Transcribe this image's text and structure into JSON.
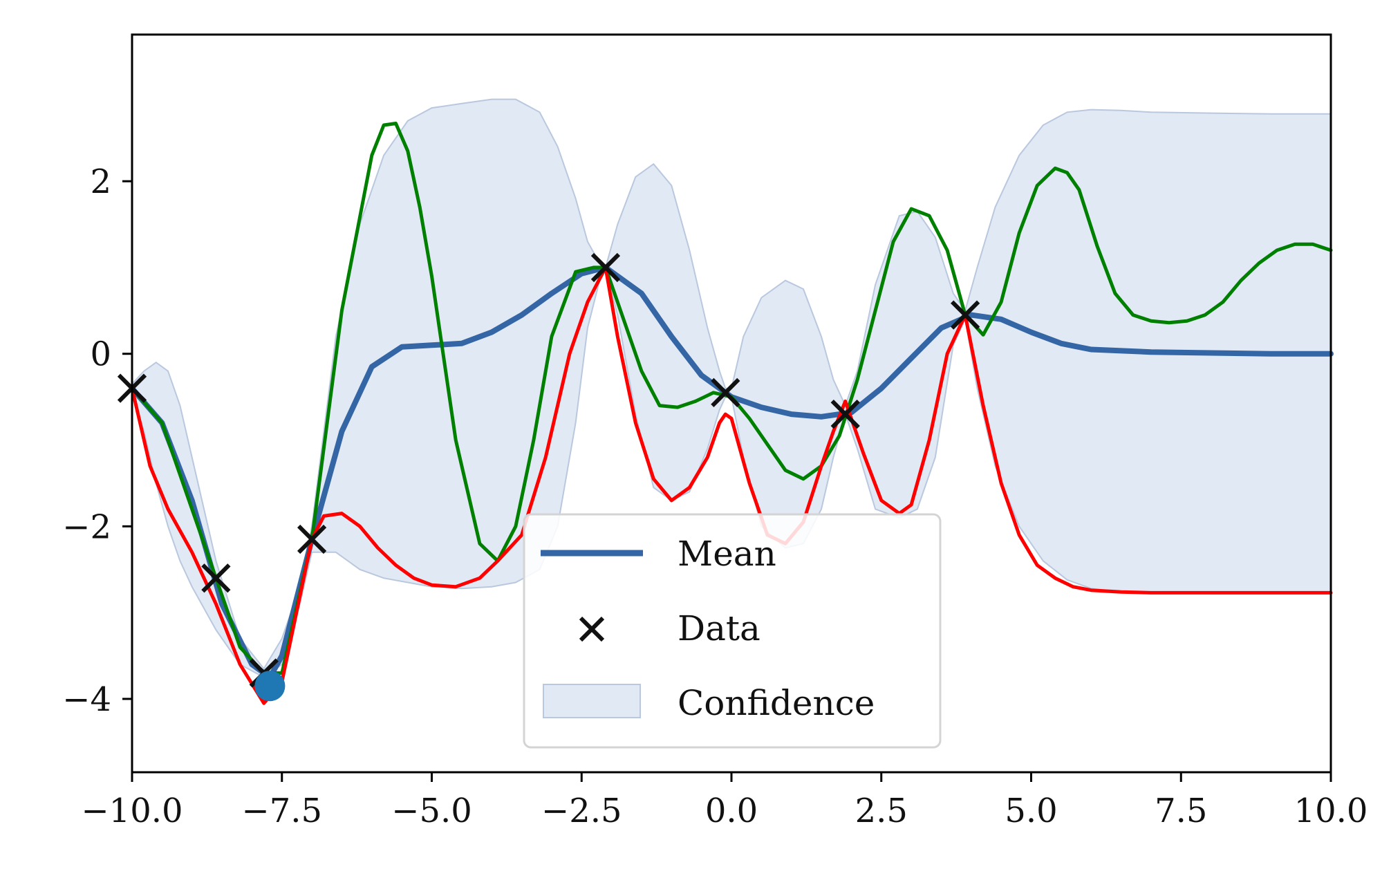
{
  "chart_data": {
    "type": "line",
    "title": "",
    "xlabel": "",
    "ylabel": "",
    "xlim": [
      -10,
      10
    ],
    "ylim": [
      -4.85,
      3.7
    ],
    "xticks": [
      -10,
      -7.5,
      -5,
      -2.5,
      0,
      2.5,
      5,
      7.5,
      10
    ],
    "xtick_labels": [
      "−10.0",
      "−7.5",
      "−5.0",
      "−2.5",
      "0.0",
      "2.5",
      "5.0",
      "7.5",
      "10.0"
    ],
    "yticks": [
      -4,
      -2,
      0,
      2
    ],
    "ytick_labels": [
      "−4",
      "−2",
      "0",
      "2"
    ],
    "grid": false,
    "legend_position": "bottom-center",
    "legend": [
      "Mean",
      "Data",
      "Confidence"
    ],
    "colors": {
      "mean": "#3465a4",
      "confidence_fill": "#e1e9f4",
      "confidence_edge": "#b9c8de",
      "sample_green": "#008000",
      "sample_red": "#ff0000",
      "data_marker": "#111111",
      "highlight_point": "#1f77b4"
    },
    "data_points": {
      "x": [
        -10.0,
        -8.6,
        -7.8,
        -7.0,
        -2.1,
        -0.1,
        1.9,
        3.9
      ],
      "y": [
        -0.4,
        -2.6,
        -3.7,
        -2.15,
        1.0,
        -0.45,
        -0.7,
        0.45
      ]
    },
    "highlight_point": {
      "x": -7.7,
      "y": -3.85
    },
    "series": [
      {
        "name": "Mean",
        "x": [
          -10.0,
          -9.5,
          -9.0,
          -8.5,
          -8.0,
          -7.7,
          -7.5,
          -7.0,
          -6.5,
          -6.0,
          -5.5,
          -5.0,
          -4.5,
          -4.0,
          -3.5,
          -3.0,
          -2.5,
          -2.1,
          -1.5,
          -1.0,
          -0.5,
          0.0,
          0.5,
          1.0,
          1.5,
          2.0,
          2.5,
          3.0,
          3.5,
          4.0,
          4.5,
          5.0,
          5.5,
          6.0,
          7.0,
          8.0,
          9.0,
          10.0
        ],
        "y": [
          -0.4,
          -0.8,
          -1.7,
          -2.9,
          -3.6,
          -3.75,
          -3.5,
          -2.15,
          -0.9,
          -0.15,
          0.08,
          0.1,
          0.12,
          0.25,
          0.45,
          0.7,
          0.93,
          1.0,
          0.7,
          0.2,
          -0.25,
          -0.5,
          -0.62,
          -0.7,
          -0.73,
          -0.68,
          -0.4,
          -0.05,
          0.3,
          0.45,
          0.4,
          0.25,
          0.12,
          0.05,
          0.02,
          0.01,
          0.0,
          0.0
        ]
      },
      {
        "name": "",
        "x": [
          -10.0,
          -9.5,
          -9.0,
          -8.6,
          -8.2,
          -7.8,
          -7.5,
          -7.0,
          -6.5,
          -6.0,
          -5.8,
          -5.6,
          -5.4,
          -5.2,
          -5.0,
          -4.6,
          -4.2,
          -3.9,
          -3.6,
          -3.3,
          -3.0,
          -2.6,
          -2.3,
          -2.1,
          -1.8,
          -1.5,
          -1.2,
          -0.9,
          -0.6,
          -0.3,
          0.0,
          0.3,
          0.6,
          0.9,
          1.2,
          1.5,
          1.8,
          2.1,
          2.4,
          2.7,
          3.0,
          3.3,
          3.6,
          3.9,
          4.2,
          4.5,
          4.8,
          5.1,
          5.4,
          5.6,
          5.8,
          6.1,
          6.4,
          6.7,
          7.0,
          7.3,
          7.6,
          7.9,
          8.2,
          8.5,
          8.8,
          9.1,
          9.4,
          9.7,
          10.0
        ],
        "y": [
          -0.4,
          -0.8,
          -1.8,
          -2.6,
          -3.4,
          -3.7,
          -3.7,
          -2.15,
          0.5,
          2.3,
          2.65,
          2.67,
          2.35,
          1.7,
          0.9,
          -1.0,
          -2.2,
          -2.4,
          -2.0,
          -1.0,
          0.2,
          0.95,
          1.0,
          1.0,
          0.4,
          -0.2,
          -0.6,
          -0.62,
          -0.55,
          -0.45,
          -0.5,
          -0.75,
          -1.05,
          -1.35,
          -1.45,
          -1.3,
          -0.95,
          -0.3,
          0.5,
          1.3,
          1.68,
          1.6,
          1.2,
          0.45,
          0.22,
          0.6,
          1.4,
          1.95,
          2.15,
          2.1,
          1.9,
          1.25,
          0.7,
          0.45,
          0.38,
          0.36,
          0.38,
          0.45,
          0.6,
          0.85,
          1.05,
          1.2,
          1.27,
          1.27,
          1.2
        ]
      },
      {
        "name": "",
        "x": [
          -10.0,
          -9.7,
          -9.4,
          -9.0,
          -8.6,
          -8.2,
          -7.8,
          -7.5,
          -7.0,
          -6.8,
          -6.5,
          -6.2,
          -5.9,
          -5.6,
          -5.3,
          -5.0,
          -4.6,
          -4.2,
          -3.9,
          -3.5,
          -3.1,
          -2.7,
          -2.4,
          -2.1,
          -1.9,
          -1.6,
          -1.3,
          -1.0,
          -0.7,
          -0.4,
          -0.2,
          -0.1,
          0.0,
          0.3,
          0.6,
          0.9,
          1.2,
          1.5,
          1.7,
          1.9,
          2.2,
          2.5,
          2.8,
          3.0,
          3.3,
          3.6,
          3.9,
          4.2,
          4.5,
          4.8,
          5.1,
          5.4,
          5.7,
          6.0,
          6.5,
          7.0,
          8.0,
          9.0,
          10.0
        ],
        "y": [
          -0.4,
          -1.3,
          -1.8,
          -2.3,
          -2.9,
          -3.6,
          -4.05,
          -3.8,
          -2.15,
          -1.88,
          -1.85,
          -2.0,
          -2.25,
          -2.45,
          -2.6,
          -2.68,
          -2.7,
          -2.6,
          -2.4,
          -2.1,
          -1.2,
          0.0,
          0.6,
          1.0,
          0.2,
          -0.8,
          -1.45,
          -1.7,
          -1.55,
          -1.2,
          -0.8,
          -0.7,
          -0.75,
          -1.5,
          -2.1,
          -2.2,
          -1.95,
          -1.3,
          -0.9,
          -0.55,
          -1.15,
          -1.7,
          -1.85,
          -1.75,
          -1.0,
          0.0,
          0.45,
          -0.6,
          -1.5,
          -2.1,
          -2.45,
          -2.6,
          -2.7,
          -2.74,
          -2.76,
          -2.77,
          -2.77,
          -2.77,
          -2.77
        ]
      }
    ],
    "confidence": {
      "x": [
        -10.0,
        -9.8,
        -9.6,
        -9.4,
        -9.2,
        -9.0,
        -8.6,
        -8.2,
        -7.8,
        -7.5,
        -7.2,
        -7.0,
        -6.6,
        -6.2,
        -5.8,
        -5.4,
        -5.0,
        -4.5,
        -4.0,
        -3.6,
        -3.2,
        -2.9,
        -2.6,
        -2.4,
        -2.2,
        -2.1,
        -1.9,
        -1.6,
        -1.3,
        -1.0,
        -0.7,
        -0.4,
        -0.2,
        -0.1,
        0.0,
        0.2,
        0.5,
        0.9,
        1.2,
        1.5,
        1.7,
        1.9,
        2.1,
        2.4,
        2.8,
        3.1,
        3.4,
        3.7,
        3.9,
        4.1,
        4.4,
        4.8,
        5.2,
        5.6,
        6.0,
        6.5,
        7.0,
        8.0,
        9.0,
        10.0
      ],
      "upper": [
        -0.35,
        -0.2,
        -0.1,
        -0.2,
        -0.6,
        -1.2,
        -2.4,
        -3.3,
        -3.65,
        -3.3,
        -2.7,
        -2.0,
        0.2,
        1.5,
        2.3,
        2.7,
        2.85,
        2.9,
        2.95,
        2.95,
        2.8,
        2.4,
        1.8,
        1.3,
        1.05,
        1.0,
        1.5,
        2.05,
        2.2,
        1.95,
        1.2,
        0.3,
        -0.2,
        -0.4,
        -0.4,
        0.2,
        0.65,
        0.85,
        0.75,
        0.2,
        -0.3,
        -0.6,
        -0.2,
        0.8,
        1.6,
        1.65,
        1.35,
        0.7,
        0.5,
        1.0,
        1.7,
        2.3,
        2.65,
        2.8,
        2.83,
        2.82,
        2.8,
        2.79,
        2.78,
        2.78
      ],
      "lower": [
        -0.45,
        -0.9,
        -1.5,
        -2.0,
        -2.4,
        -2.7,
        -3.2,
        -3.6,
        -3.75,
        -3.6,
        -2.9,
        -2.3,
        -2.3,
        -2.5,
        -2.6,
        -2.65,
        -2.7,
        -2.72,
        -2.7,
        -2.65,
        -2.5,
        -2.0,
        -0.8,
        0.3,
        0.85,
        0.98,
        0.45,
        -0.7,
        -1.55,
        -1.7,
        -1.6,
        -1.1,
        -0.65,
        -0.5,
        -0.5,
        -1.2,
        -2.0,
        -2.25,
        -2.2,
        -1.8,
        -1.2,
        -0.7,
        -1.1,
        -1.8,
        -1.9,
        -1.8,
        -1.2,
        0.1,
        0.4,
        -0.4,
        -1.3,
        -2.0,
        -2.4,
        -2.62,
        -2.72,
        -2.76,
        -2.77,
        -2.78,
        -2.78,
        -2.78
      ]
    }
  }
}
